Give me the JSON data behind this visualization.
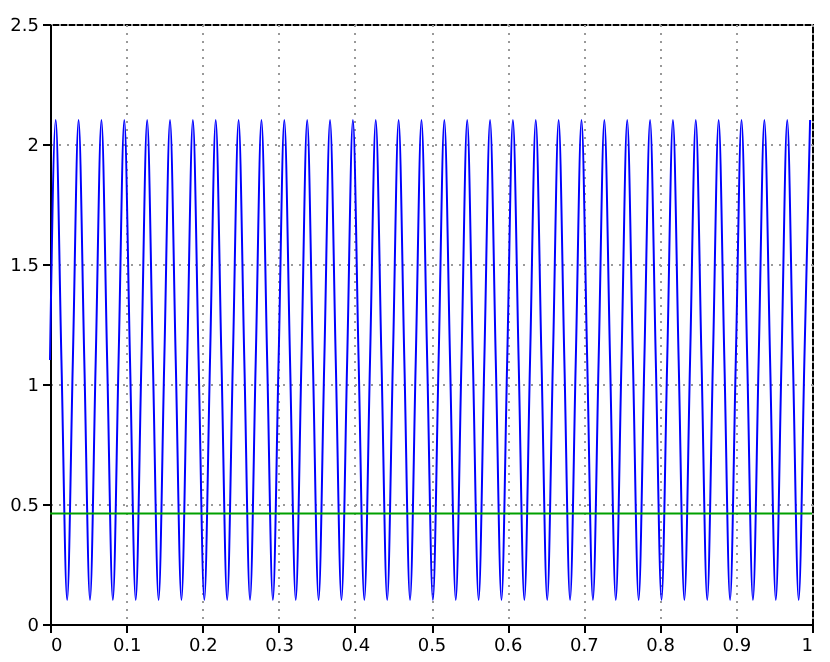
{
  "chart_data": {
    "type": "line",
    "xlim": [
      0,
      1
    ],
    "ylim": [
      0,
      2.5
    ],
    "xticks": [
      0,
      0.1,
      0.2,
      0.3,
      0.4,
      0.5,
      0.6,
      0.7,
      0.8,
      0.9,
      1
    ],
    "yticks": [
      0,
      0.5,
      1,
      1.5,
      2,
      2.5
    ],
    "grid": true,
    "line_style": "solid",
    "series": [
      {
        "color": "#0000ff",
        "x": [
          0,
          0.0075,
          0.015,
          0.0225,
          0.03,
          0.0375,
          0.045,
          0.0525,
          0.06,
          0.0675,
          0.075,
          0.0825,
          0.09,
          0.0975,
          0.105,
          0.1125,
          0.12,
          0.1275,
          0.135,
          0.1425,
          0.15,
          0.1575,
          0.165,
          0.1725,
          0.18,
          0.1875,
          0.195,
          0.2025,
          0.21,
          0.2175,
          0.225,
          0.2325,
          0.24,
          0.2475,
          0.255,
          0.2625,
          0.27,
          0.2775,
          0.285,
          0.2925,
          0.3,
          0.3075,
          0.315,
          0.3225,
          0.33,
          0.3375,
          0.345,
          0.3525,
          0.36,
          0.3675,
          0.375,
          0.3825,
          0.39,
          0.3975,
          0.405,
          0.4125,
          0.42,
          0.4275,
          0.435,
          0.4425,
          0.45,
          0.4575,
          0.465,
          0.4725,
          0.48,
          0.4875,
          0.495,
          0.5025,
          0.51,
          0.5175,
          0.525,
          0.5325,
          0.54,
          0.5475,
          0.555,
          0.5625,
          0.57,
          0.5775,
          0.585,
          0.5925,
          0.6,
          0.6075,
          0.615,
          0.6225,
          0.63,
          0.6375,
          0.645,
          0.6525,
          0.66,
          0.6675,
          0.675,
          0.6825,
          0.69,
          0.6975,
          0.705,
          0.7125,
          0.72,
          0.7275,
          0.735,
          0.7425,
          0.75,
          0.7575,
          0.765,
          0.7725,
          0.78,
          0.7875,
          0.795,
          0.8025,
          0.81,
          0.8175,
          0.825,
          0.8325,
          0.84,
          0.8475,
          0.855,
          0.8625,
          0.87,
          0.8775,
          0.885,
          0.8925,
          0.9,
          0.9075,
          0.915,
          0.9225,
          0.93,
          0.9375,
          0.945,
          0.9525,
          0.96,
          0.9675,
          0.975,
          0.9825,
          0.99,
          0.9975
        ],
        "values": [
          1.1,
          2.1,
          1.1,
          0.1,
          1.1,
          2.1,
          1.1,
          0.1,
          1.1,
          2.1,
          1.1,
          0.1,
          1.1,
          2.1,
          1.1,
          0.1,
          1.1,
          2.1,
          1.1,
          0.1,
          1.1,
          2.1,
          1.1,
          0.1,
          1.1,
          2.1,
          1.1,
          0.1,
          1.1,
          2.1,
          1.1,
          0.1,
          1.1,
          2.1,
          1.1,
          0.1,
          1.1,
          2.1,
          1.1,
          0.1,
          1.1,
          2.1,
          1.1,
          0.1,
          1.1,
          2.1,
          1.1,
          0.1,
          1.1,
          2.1,
          1.1,
          0.1,
          1.1,
          2.1,
          1.1,
          0.1,
          1.1,
          2.1,
          1.1,
          0.1,
          1.1,
          2.1,
          1.1,
          0.1,
          1.1,
          2.1,
          1.1,
          0.1,
          1.1,
          2.1,
          1.1,
          0.1,
          1.1,
          2.1,
          1.1,
          0.1,
          1.1,
          2.1,
          1.1,
          0.1,
          1.1,
          2.1,
          1.1,
          0.1,
          1.1,
          2.1,
          1.1,
          0.1,
          1.1,
          2.1,
          1.1,
          0.1,
          1.1,
          2.1,
          1.1,
          0.1,
          1.1,
          2.1,
          1.1,
          0.1,
          1.1,
          2.1,
          1.1,
          0.1,
          1.1,
          2.1,
          1.1,
          0.1,
          1.1,
          2.1,
          1.1,
          0.1,
          1.1,
          2.1,
          1.1,
          0.1,
          1.1,
          2.1,
          1.1,
          0.1,
          1.1,
          2.1,
          1.1,
          0.1,
          1.1,
          2.1,
          1.1,
          0.1,
          1.1,
          2.1,
          1.1,
          0.1,
          1.1,
          2.1
        ]
      },
      {
        "color": "#00a000",
        "x": [
          0,
          1
        ],
        "values": [
          0.46,
          0.46
        ]
      }
    ]
  }
}
